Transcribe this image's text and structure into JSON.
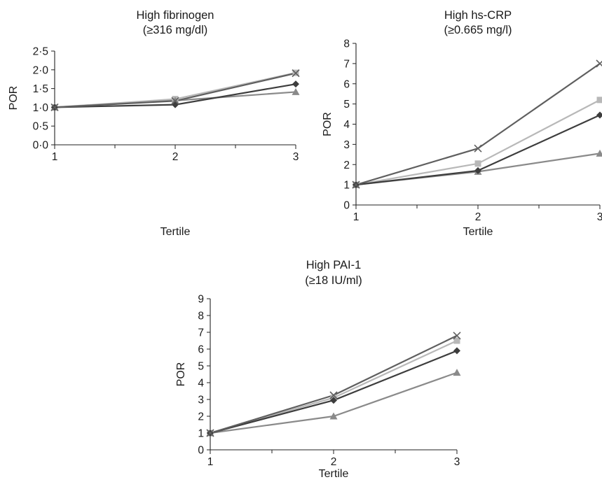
{
  "chart_data": [
    {
      "type": "line",
      "title": "High fibrinogen",
      "subtitle": "(≥316 mg/dl)",
      "xlabel": "Tertile",
      "ylabel": "POR",
      "x": [
        1,
        2,
        3
      ],
      "x_ticks": [
        "1",
        "2",
        "3"
      ],
      "y_ticks": [
        "0·0",
        "0·5",
        "1·0",
        "1·5",
        "2·0",
        "2·5"
      ],
      "ylim": [
        0,
        2.5
      ],
      "grid": false,
      "series": [
        {
          "marker": "diamond-icon",
          "color": "#3d3d3d",
          "values": [
            1.0,
            1.07,
            1.62
          ]
        },
        {
          "marker": "square-icon",
          "color": "#b8b8b8",
          "values": [
            1.0,
            1.22,
            1.92
          ]
        },
        {
          "marker": "triangle-icon",
          "color": "#8a8a8a",
          "values": [
            1.0,
            1.18,
            1.41
          ]
        },
        {
          "marker": "x-icon",
          "color": "#5f5f5f",
          "values": [
            1.0,
            1.17,
            1.91
          ]
        }
      ]
    },
    {
      "type": "line",
      "title": "High hs-CRP",
      "subtitle": "(≥0.665 mg/l)",
      "xlabel": "Tertile",
      "ylabel": "POR",
      "x": [
        1,
        2,
        3
      ],
      "x_ticks": [
        "1",
        "2",
        "3"
      ],
      "y_ticks": [
        "0",
        "1",
        "2",
        "3",
        "4",
        "5",
        "6",
        "7",
        "8"
      ],
      "ylim": [
        0,
        8
      ],
      "grid": false,
      "series": [
        {
          "marker": "diamond-icon",
          "color": "#3d3d3d",
          "values": [
            1.0,
            1.7,
            4.45
          ]
        },
        {
          "marker": "square-icon",
          "color": "#b8b8b8",
          "values": [
            1.0,
            2.05,
            5.2
          ]
        },
        {
          "marker": "triangle-icon",
          "color": "#8a8a8a",
          "values": [
            1.0,
            1.65,
            2.55
          ]
        },
        {
          "marker": "x-icon",
          "color": "#5f5f5f",
          "values": [
            1.0,
            2.8,
            7.0
          ]
        }
      ]
    },
    {
      "type": "line",
      "title": "High PAI-1",
      "subtitle": "(≥18 IU/ml)",
      "xlabel": "Tertile",
      "ylabel": "POR",
      "x": [
        1,
        2,
        3
      ],
      "x_ticks": [
        "1",
        "2",
        "3"
      ],
      "y_ticks": [
        "0",
        "1",
        "2",
        "3",
        "4",
        "5",
        "6",
        "7",
        "8",
        "9"
      ],
      "ylim": [
        0,
        9
      ],
      "grid": false,
      "series": [
        {
          "marker": "diamond-icon",
          "color": "#3d3d3d",
          "values": [
            1.0,
            2.95,
            5.9
          ]
        },
        {
          "marker": "square-icon",
          "color": "#b8b8b8",
          "values": [
            1.0,
            3.1,
            6.5
          ]
        },
        {
          "marker": "triangle-icon",
          "color": "#8a8a8a",
          "values": [
            1.0,
            2.0,
            4.6
          ]
        },
        {
          "marker": "x-icon",
          "color": "#5f5f5f",
          "values": [
            1.0,
            3.25,
            6.8
          ]
        }
      ]
    }
  ]
}
